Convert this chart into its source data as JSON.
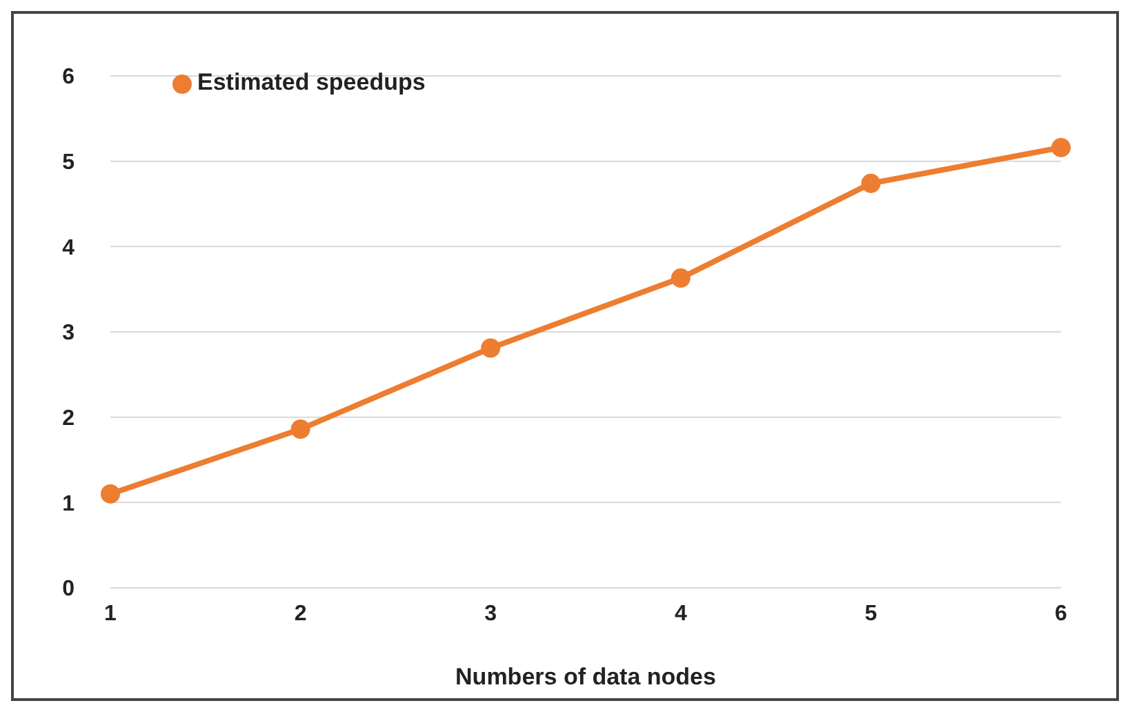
{
  "chart_data": {
    "type": "line",
    "xlabel": "Numbers of data nodes",
    "categories": [
      "1",
      "2",
      "3",
      "4",
      "5",
      "6"
    ],
    "series": [
      {
        "name": "Estimated speedups",
        "color": "#ed7d31",
        "values": [
          1.1,
          1.86,
          2.81,
          3.63,
          4.74,
          5.16
        ]
      }
    ],
    "ylim": [
      0,
      6
    ],
    "yticks": [
      0,
      1,
      2,
      3,
      4,
      5,
      6
    ],
    "grid": "y",
    "legend": "top left",
    "marker": "circle",
    "line_style": "solid"
  }
}
